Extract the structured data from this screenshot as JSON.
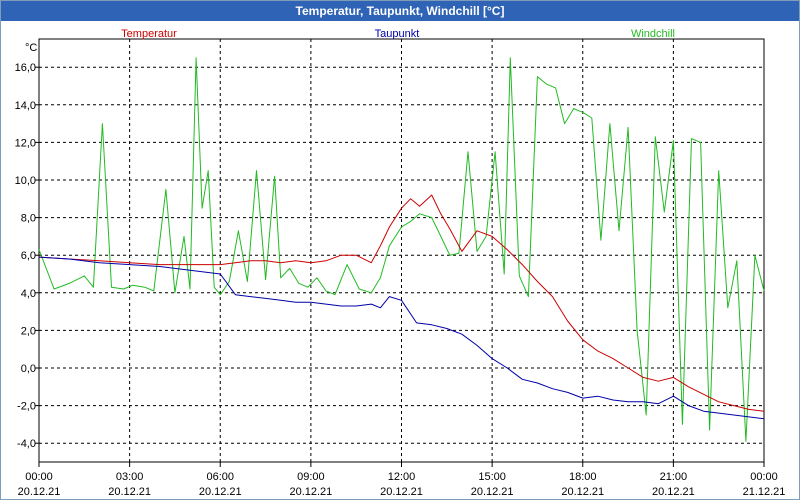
{
  "window": {
    "title": "Temperatur, Taupunkt, Windchill [°C]"
  },
  "chart_data": {
    "type": "line",
    "title": "Temperatur, Taupunkt, Windchill [°C]",
    "ylabel": "°C",
    "ylim": [
      -5,
      17.5
    ],
    "yticks": [
      -4,
      -2,
      0,
      2,
      4,
      6,
      8,
      10,
      12,
      14,
      16
    ],
    "ytick_labels": [
      "-4,0",
      "-2,0",
      "0,0",
      "2,0",
      "4,0",
      "6,0",
      "8,0",
      "10,0",
      "12,0",
      "14,0",
      "16,0"
    ],
    "xlim": [
      0,
      24
    ],
    "xticks": [
      0,
      3,
      6,
      9,
      12,
      15,
      18,
      21,
      24
    ],
    "xtick_times": [
      "00:00",
      "03:00",
      "06:00",
      "09:00",
      "12:00",
      "15:00",
      "18:00",
      "21:00",
      "00:00"
    ],
    "xtick_dates": [
      "20.12.21",
      "20.12.21",
      "20.12.21",
      "20.12.21",
      "20.12.21",
      "20.12.21",
      "20.12.21",
      "20.12.21",
      "21.12.21"
    ],
    "grid": true,
    "series": [
      {
        "name": "Temperatur",
        "color": "#cc0000",
        "x": [
          0,
          1,
          2,
          3,
          4,
          5,
          6,
          6.5,
          7,
          7.5,
          8,
          8.5,
          9,
          9.5,
          10,
          10.5,
          11,
          11.3,
          11.6,
          12,
          12.3,
          12.6,
          13,
          13.3,
          13.6,
          14,
          14.5,
          15,
          15.5,
          16,
          16.5,
          17,
          17.5,
          18,
          18.5,
          19,
          19.5,
          20,
          20.5,
          21,
          21.5,
          22,
          22.5,
          23,
          23.5,
          24
        ],
        "y": [
          5.9,
          5.8,
          5.7,
          5.6,
          5.5,
          5.5,
          5.5,
          5.6,
          5.7,
          5.7,
          5.6,
          5.7,
          5.6,
          5.7,
          6.0,
          6.0,
          5.6,
          6.5,
          7.5,
          8.5,
          9.0,
          8.6,
          9.2,
          8.2,
          7.4,
          6.2,
          7.3,
          7.0,
          6.3,
          5.5,
          4.6,
          3.8,
          2.5,
          1.5,
          0.9,
          0.5,
          0.0,
          -0.5,
          -0.7,
          -0.5,
          -1.0,
          -1.4,
          -1.8,
          -2.0,
          -2.2,
          -2.3
        ]
      },
      {
        "name": "Taupunkt",
        "color": "#0000aa",
        "x": [
          0,
          1,
          2,
          3,
          4,
          5,
          6,
          6.5,
          7,
          7.5,
          8,
          8.5,
          9,
          9.5,
          10,
          10.5,
          11,
          11.3,
          11.6,
          12,
          12.5,
          13,
          13.5,
          14,
          14.5,
          15,
          15.5,
          16,
          16.5,
          17,
          17.5,
          18,
          18.5,
          19,
          19.5,
          20,
          20.5,
          21,
          21.5,
          22,
          22.5,
          23,
          23.5,
          24
        ],
        "y": [
          5.9,
          5.8,
          5.6,
          5.5,
          5.4,
          5.2,
          5.0,
          3.9,
          3.8,
          3.7,
          3.6,
          3.5,
          3.5,
          3.4,
          3.3,
          3.3,
          3.4,
          3.2,
          3.8,
          3.6,
          2.4,
          2.3,
          2.1,
          1.8,
          1.2,
          0.5,
          0.0,
          -0.6,
          -0.8,
          -1.1,
          -1.3,
          -1.6,
          -1.5,
          -1.7,
          -1.8,
          -1.8,
          -1.9,
          -1.5,
          -2.0,
          -2.3,
          -2.4,
          -2.5,
          -2.6,
          -2.7
        ]
      },
      {
        "name": "Windchill",
        "color": "#22bb22",
        "x": [
          0,
          0.5,
          1,
          1.5,
          1.8,
          2.1,
          2.4,
          2.8,
          3.1,
          3.5,
          3.8,
          4.2,
          4.5,
          4.8,
          5.0,
          5.2,
          5.4,
          5.6,
          5.8,
          6.0,
          6.3,
          6.6,
          6.9,
          7.2,
          7.5,
          7.8,
          8.0,
          8.3,
          8.6,
          8.9,
          9.2,
          9.5,
          9.8,
          10.2,
          10.6,
          11.0,
          11.3,
          11.6,
          12.0,
          12.3,
          12.6,
          13.0,
          13.3,
          13.6,
          13.9,
          14.2,
          14.5,
          14.8,
          15.1,
          15.4,
          15.6,
          15.9,
          16.2,
          16.5,
          16.8,
          17.1,
          17.4,
          17.7,
          18.0,
          18.3,
          18.6,
          18.9,
          19.2,
          19.5,
          19.8,
          20.1,
          20.4,
          20.7,
          21.0,
          21.3,
          21.6,
          21.9,
          22.2,
          22.5,
          22.8,
          23.1,
          23.4,
          23.7,
          24.0
        ],
        "y": [
          6.3,
          4.2,
          4.5,
          4.9,
          4.3,
          13.0,
          4.3,
          4.2,
          4.4,
          4.3,
          4.1,
          9.5,
          4.0,
          7.0,
          4.2,
          16.5,
          8.5,
          10.5,
          4.3,
          3.9,
          4.6,
          7.3,
          4.6,
          10.5,
          4.7,
          10.2,
          4.8,
          5.3,
          4.5,
          4.3,
          4.8,
          4.1,
          3.9,
          5.5,
          4.2,
          4.0,
          4.8,
          6.5,
          7.5,
          7.8,
          8.2,
          8.0,
          7.0,
          6.0,
          6.1,
          11.5,
          6.2,
          7.0,
          11.5,
          5.0,
          16.5,
          4.9,
          3.8,
          15.5,
          15.1,
          14.9,
          13.0,
          13.8,
          13.6,
          13.3,
          6.8,
          13.0,
          7.3,
          12.8,
          2.0,
          -2.5,
          12.3,
          8.3,
          12.1,
          -3.0,
          12.2,
          12.0,
          -3.3,
          10.5,
          3.2,
          5.7,
          -3.9,
          6.0,
          4.1
        ]
      }
    ]
  }
}
